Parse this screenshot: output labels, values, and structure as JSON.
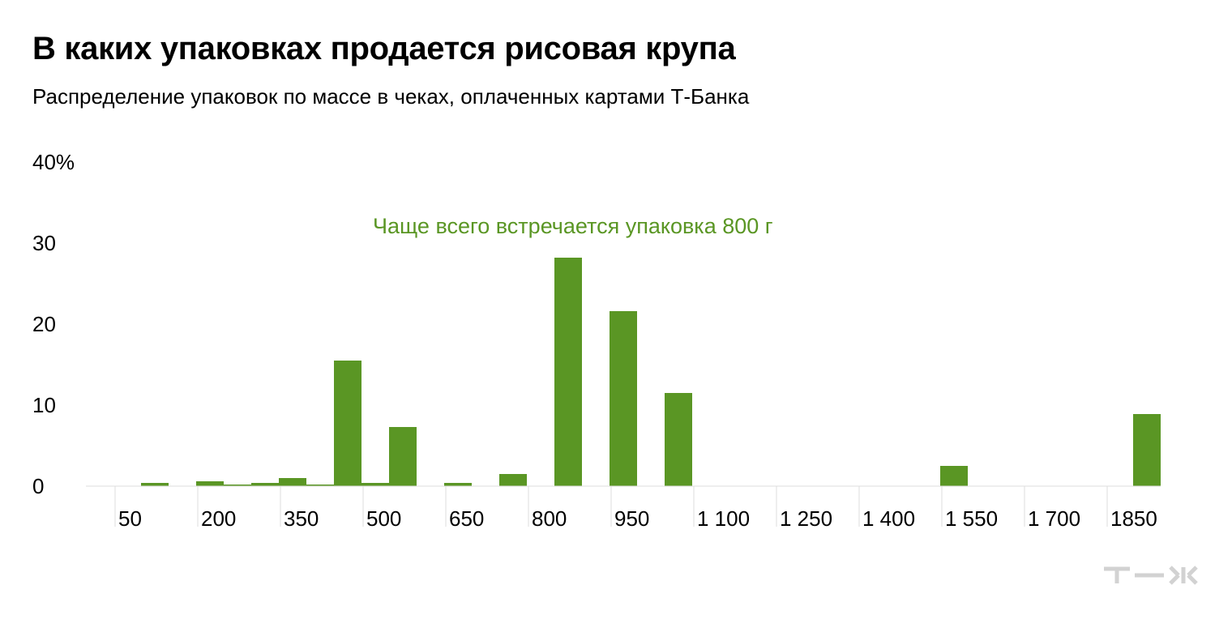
{
  "header": {
    "title": "В каких упаковках продается рисовая крупа",
    "subtitle": "Распределение упаковок по массе в чеках, оплаченных картами Т-Банка"
  },
  "chart_data": {
    "type": "bar",
    "title": "В каких упаковках продается рисовая крупа",
    "subtitle": "Распределение упаковок по массе в чеках, оплаченных картами Т-Банка",
    "xlabel": "",
    "ylabel": "",
    "ylim": [
      0,
      40
    ],
    "y_ticks": [
      "0",
      "10",
      "20",
      "30",
      "40%"
    ],
    "x_tick_labels": [
      "50",
      "200",
      "350",
      "500",
      "650",
      "800",
      "950",
      "1 100",
      "1 250",
      "1 400",
      "1 550",
      "1 700",
      "1850"
    ],
    "x": [
      50,
      100,
      150,
      200,
      250,
      300,
      350,
      400,
      450,
      500,
      550,
      600,
      650,
      700,
      750,
      800,
      850,
      900,
      950,
      1000,
      1050,
      1100,
      1150,
      1200,
      1250,
      1300,
      1350,
      1400,
      1450,
      1500,
      1550,
      1600,
      1650,
      1700,
      1750,
      1800,
      1850,
      1900
    ],
    "values": [
      0,
      0.4,
      0,
      0.6,
      0.2,
      0.4,
      1.0,
      0.2,
      15.5,
      0.4,
      7.3,
      0,
      0.4,
      0,
      1.5,
      0,
      28.2,
      0,
      21.6,
      0,
      11.5,
      0,
      0,
      0,
      0,
      0,
      0,
      0,
      0,
      0,
      2.5,
      0,
      0,
      0,
      0,
      0,
      0,
      8.9
    ],
    "annotation": "Чаще всего встречается упаковка 800 г",
    "bar_color": "#5a9624",
    "annotation_color": "#5a9624",
    "grid": false,
    "legend": "none"
  },
  "logo": {
    "name": "t-zh-logo",
    "text": "т—ж",
    "color": "#d2d2d2"
  }
}
